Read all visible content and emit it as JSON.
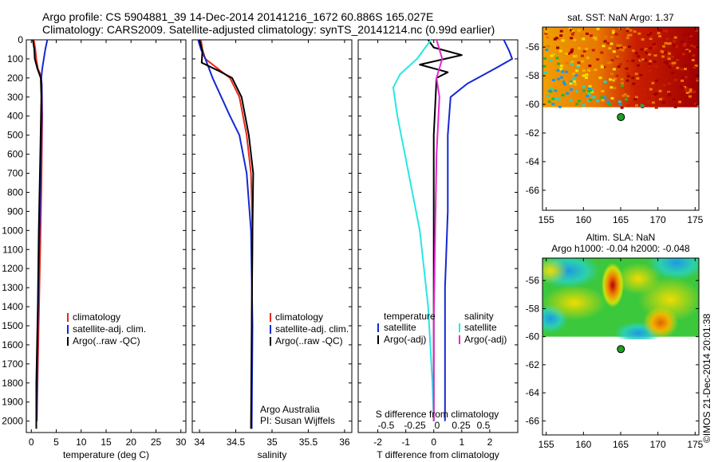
{
  "header": {
    "line1": "Argo profile: CS 5904881_39 14-Dec-2014 20141216_1672 60.886S 165.027E",
    "line2": "Climatology: CARS2009. Satellite-adjusted climatology: synTS_20141214.nc (0.99d earlier)"
  },
  "colors": {
    "red": "#e8281e",
    "blue": "#1428d2",
    "black": "#000000",
    "cyan": "#28e6e6",
    "magenta": "#e628d2",
    "float_marker": "#1ea01e"
  },
  "chart_data": [
    {
      "id": "temperature",
      "type": "line",
      "xlabel": "temperature (deg C)",
      "xlim": [
        -1,
        31
      ],
      "xticks": [
        "0",
        "5",
        "10",
        "15",
        "20",
        "25",
        "30"
      ],
      "xtick_values": [
        0,
        5,
        10,
        15,
        20,
        25,
        30
      ],
      "ylim": [
        0,
        2060
      ],
      "yticks": [
        "0",
        "100",
        "200",
        "300",
        "400",
        "500",
        "600",
        "700",
        "800",
        "900",
        "1000",
        "1100",
        "1200",
        "1300",
        "1400",
        "1500",
        "1600",
        "1700",
        "1800",
        "1900",
        "2000"
      ],
      "ytick_values": [
        0,
        100,
        200,
        300,
        400,
        500,
        600,
        700,
        800,
        900,
        1000,
        1100,
        1200,
        1300,
        1400,
        1500,
        1600,
        1700,
        1800,
        1900,
        2000
      ],
      "legend": [
        "climatology",
        "satellite-adj. clim.",
        "Argo(..raw -QC)"
      ],
      "series": [
        {
          "name": "climatology",
          "color": "red",
          "x": [
            0.5,
            0.8,
            1.0,
            1.3,
            1.8,
            2.1,
            2.2,
            2.0,
            1.7,
            1.4,
            1.1
          ],
          "y": [
            0,
            50,
            100,
            150,
            180,
            230,
            400,
            800,
            1200,
            1600,
            2000
          ]
        },
        {
          "name": "satellite-adj. clim.",
          "color": "blue",
          "x": [
            3.2,
            2.8,
            2.5,
            2.2,
            2.0,
            2.1,
            2.1,
            1.8,
            1.5,
            1.2,
            1.1
          ],
          "y": [
            0,
            50,
            100,
            150,
            200,
            250,
            400,
            800,
            1200,
            1600,
            2000
          ]
        },
        {
          "name": "Argo(..raw -QC)",
          "color": "black",
          "x": [
            0.3,
            0.6,
            0.7,
            1.2,
            1.9,
            2.0,
            1.8,
            1.5,
            1.3,
            1.0,
            1.0
          ],
          "y": [
            0,
            50,
            100,
            150,
            200,
            300,
            600,
            1000,
            1400,
            1800,
            2040
          ]
        }
      ]
    },
    {
      "id": "salinity",
      "type": "line",
      "xlabel": "salinity",
      "xlim": [
        33.9,
        36.1
      ],
      "xticks": [
        "34",
        "34.5",
        "35",
        "35.5",
        "36"
      ],
      "xtick_values": [
        34,
        34.5,
        35,
        35.5,
        36
      ],
      "ylim": [
        0,
        2060
      ],
      "legend": [
        "climatology",
        "satellite-adj. clim.",
        "Argo(..raw -QC)"
      ],
      "annotation": [
        "Argo Australia",
        "PI: Susan Wijffels"
      ],
      "series": [
        {
          "name": "climatology",
          "color": "red",
          "x": [
            34.02,
            34.04,
            34.08,
            34.25,
            34.42,
            34.55,
            34.65,
            34.71,
            34.73,
            34.72,
            34.72
          ],
          "y": [
            0,
            50,
            100,
            150,
            200,
            300,
            500,
            700,
            1000,
            1500,
            2040
          ]
        },
        {
          "name": "satellite-adj. clim.",
          "color": "blue",
          "x": [
            33.98,
            34.02,
            34.08,
            34.18,
            34.3,
            34.42,
            34.55,
            34.65,
            34.71,
            34.73,
            34.72
          ],
          "y": [
            0,
            50,
            100,
            200,
            300,
            400,
            500,
            700,
            1000,
            1500,
            2040
          ]
        },
        {
          "name": "Argo(..raw -QC)",
          "color": "black",
          "x": [
            34.0,
            34.04,
            34.03,
            34.25,
            34.45,
            34.58,
            34.68,
            34.74,
            34.73,
            34.72,
            34.71
          ],
          "y": [
            0,
            60,
            120,
            160,
            200,
            300,
            500,
            700,
            1000,
            1500,
            2040
          ]
        }
      ]
    },
    {
      "id": "differences",
      "type": "line",
      "xlabel": "T difference from climatology",
      "xticks": [
        "-2",
        "-1",
        "0",
        "1",
        "2"
      ],
      "xtick_values": [
        -2,
        -1,
        0,
        1,
        2
      ],
      "xlim": [
        -2.7,
        3.0
      ],
      "top_axis_label": "S difference from climatology",
      "top_ticks": [
        "-0.5",
        "-0.25",
        "0",
        "0.25",
        "0.5"
      ],
      "ylim": [
        0,
        2060
      ],
      "legend_headers": [
        "temperature",
        "salinity"
      ],
      "legend_temperature": [
        "satellite",
        "Argo(-adj)"
      ],
      "legend_salinity": [
        "satellite",
        "Argo(-adj)"
      ],
      "series": [
        {
          "name": "temperature satellite",
          "color": "blue",
          "x": [
            2.5,
            2.6,
            2.7,
            2.8,
            2.2,
            1.2,
            0.6,
            0.5,
            0.5,
            0.4,
            0.4,
            0.4
          ],
          "y": [
            0,
            30,
            60,
            100,
            150,
            230,
            300,
            500,
            900,
            1300,
            1700,
            2000
          ]
        },
        {
          "name": "temperature Argo(-adj)",
          "color": "black",
          "x": [
            -0.2,
            0.0,
            1.0,
            -0.5,
            0.5,
            0.1,
            0.0,
            0.0,
            0.0,
            0.0
          ],
          "y": [
            0,
            40,
            80,
            130,
            170,
            200,
            500,
            1000,
            1500,
            2000
          ]
        },
        {
          "name": "salinity satellite",
          "color": "cyan",
          "x": [
            -0.1,
            -0.6,
            -1.2,
            -1.45,
            -1.3,
            -0.9,
            -0.5,
            -0.2,
            -0.05,
            0.0
          ],
          "y": [
            0,
            100,
            180,
            250,
            400,
            700,
            1000,
            1400,
            1800,
            2000
          ]
        },
        {
          "name": "salinity Argo(-adj)",
          "color": "magenta",
          "x": [
            0.1,
            0.3,
            0.1,
            0.2,
            0.1,
            0.05,
            0.0,
            0.0
          ],
          "y": [
            0,
            100,
            200,
            300,
            600,
            1000,
            1500,
            2000
          ]
        }
      ]
    },
    {
      "id": "sst-map",
      "type": "heatmap",
      "title": "sat. SST: NaN Argo: 1.37",
      "xticks": [
        "155",
        "160",
        "165",
        "170",
        "175"
      ],
      "xtick_values": [
        155,
        160,
        165,
        170,
        175
      ],
      "yticks": [
        "-56",
        "-58",
        "-60",
        "-62",
        "-64",
        "-66"
      ],
      "ytick_values": [
        -56,
        -58,
        -60,
        -62,
        -64,
        -66
      ],
      "xlim": [
        154.5,
        175.5
      ],
      "ylim": [
        -67.4,
        -54.6
      ],
      "data_lat_min": -60.2,
      "float_position": {
        "lon": 165.027,
        "lat": -60.886
      }
    },
    {
      "id": "sla-map",
      "type": "heatmap",
      "title_lines": [
        "Altim. SLA: NaN",
        "Argo h1000: -0.04 h2000: -0.048"
      ],
      "xticks": [
        "155",
        "160",
        "165",
        "170",
        "175"
      ],
      "xtick_values": [
        155,
        160,
        165,
        170,
        175
      ],
      "yticks": [
        "-56",
        "-58",
        "-60",
        "-62",
        "-64",
        "-66"
      ],
      "ytick_values": [
        -56,
        -58,
        -60,
        -62,
        -64,
        -66
      ],
      "xlim": [
        154.5,
        175.5
      ],
      "ylim": [
        -67.0,
        -54.4
      ],
      "data_lat_min": -60.0,
      "float_position": {
        "lon": 165.027,
        "lat": -60.886
      }
    }
  ],
  "footer": {
    "credit": "©IMOS 21-Dec-2014 20:01:38"
  }
}
